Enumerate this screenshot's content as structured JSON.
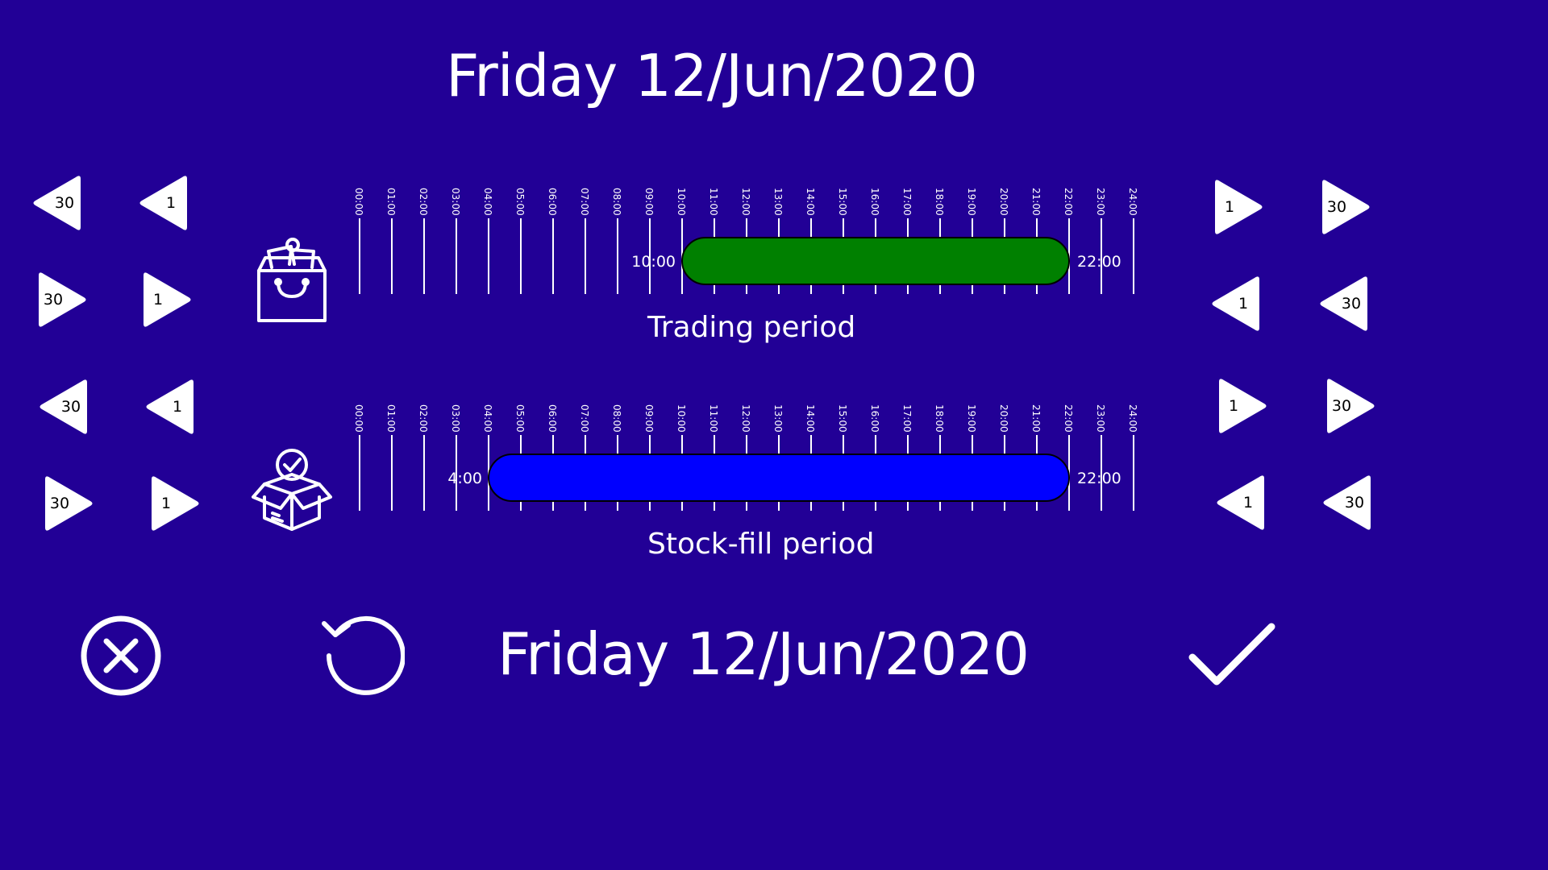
{
  "header": {
    "date": "Friday 12/Jun/2020"
  },
  "footer": {
    "date": "Friday 12/Jun/2020"
  },
  "hours": [
    "00:00",
    "01:00",
    "02:00",
    "03:00",
    "04:00",
    "05:00",
    "06:00",
    "07:00",
    "08:00",
    "09:00",
    "10:00",
    "11:00",
    "12:00",
    "13:00",
    "14:00",
    "15:00",
    "16:00",
    "17:00",
    "18:00",
    "19:00",
    "20:00",
    "21:00",
    "22:00",
    "23:00",
    "24:00"
  ],
  "trading": {
    "label": "Trading period",
    "start_label": "10:00",
    "end_label": "22:00",
    "start_hour": 10,
    "end_hour": 22,
    "color": "#008000",
    "start_controls": {
      "back_30": "30",
      "back_1": "1",
      "fwd_30": "30",
      "fwd_1": "1"
    },
    "end_controls": {
      "fwd_1": "1",
      "fwd_30": "30",
      "back_1": "1",
      "back_30": "30"
    }
  },
  "stockfill": {
    "label": "Stock-fill period",
    "start_label": "4:00",
    "end_label": "22:00",
    "start_hour": 4,
    "end_hour": 22,
    "color": "#0000ff",
    "start_controls": {
      "back_30": "30",
      "back_1": "1",
      "fwd_30": "30",
      "fwd_1": "1"
    },
    "end_controls": {
      "fwd_1": "1",
      "fwd_30": "30",
      "back_1": "1",
      "back_30": "30"
    }
  },
  "icons": {
    "bag": "shopping-bag-icon",
    "box": "open-box-check-icon",
    "cancel": "cancel-circle-x-icon",
    "reset": "reset-rotate-icon",
    "confirm": "checkmark-icon"
  },
  "colors": {
    "background": "#220096",
    "foreground": "#ffffff"
  }
}
